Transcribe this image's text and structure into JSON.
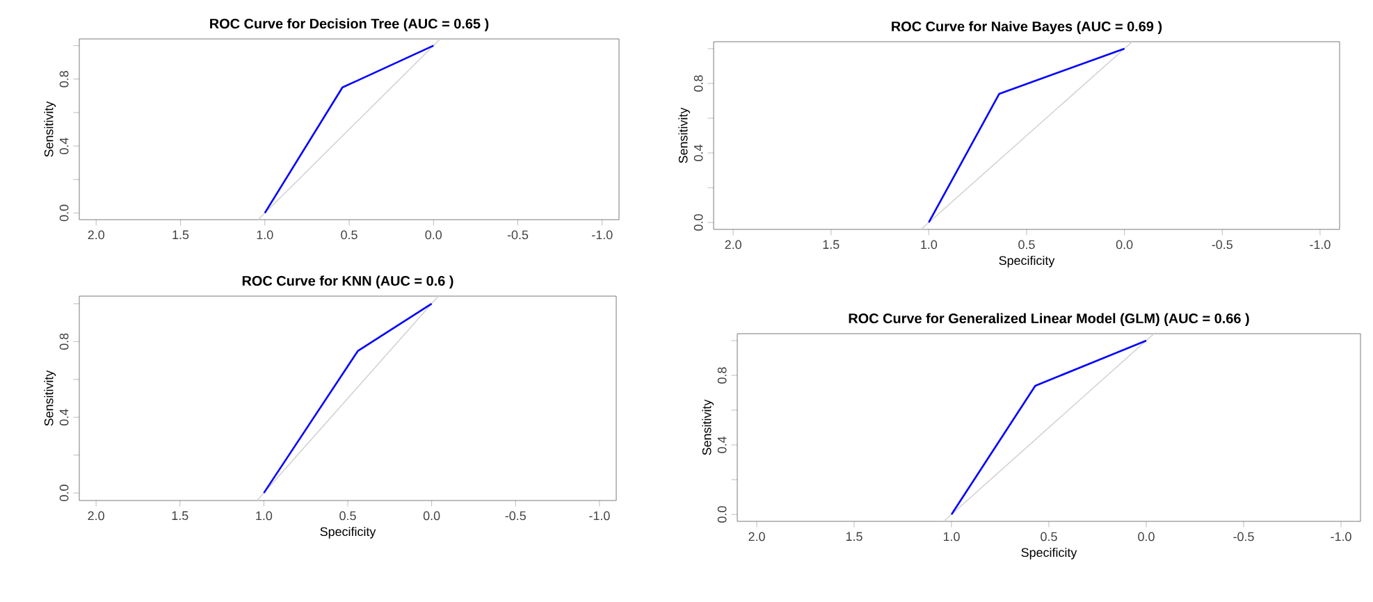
{
  "chart_data": [
    {
      "type": "line",
      "title": "ROC Curve for Decision Tree  (AUC = 0.65 )",
      "ylabel": "Sensitivity",
      "xlim": [
        2.1,
        -1.1
      ],
      "ylim": [
        -0.04,
        1.04
      ],
      "xticks": [
        {
          "value": 2,
          "label": "2.0"
        },
        {
          "value": 1.5,
          "label": "1.5"
        },
        {
          "value": 1,
          "label": "1.0"
        },
        {
          "value": 0.5,
          "label": "0.5"
        },
        {
          "value": 0,
          "label": "0.0"
        },
        {
          "value": -0.5,
          "label": "-0.5"
        },
        {
          "value": -1,
          "label": "-1.0"
        }
      ],
      "yticks": [
        {
          "value": 0,
          "label": "0.0"
        },
        {
          "value": 0.2,
          "label": null
        },
        {
          "value": 0.4,
          "label": "0.4"
        },
        {
          "value": 0.6,
          "label": null
        },
        {
          "value": 0.8,
          "label": "0.8"
        },
        {
          "value": 1,
          "label": null
        }
      ],
      "grid": false,
      "series": [
        {
          "color": "#d3d3d3",
          "x": [
            1.04,
            -0.04
          ],
          "values": [
            -0.04,
            1.04
          ]
        },
        {
          "color": "#0000ff",
          "x": [
            1,
            0.54,
            0
          ],
          "values": [
            0,
            0.75,
            1
          ]
        }
      ]
    },
    {
      "type": "line",
      "title": "ROC Curve for Naive Bayes  (AUC = 0.69 )",
      "xlabel": "Specificity",
      "ylabel": "Sensitivity",
      "xlim": [
        2.1,
        -1.1
      ],
      "ylim": [
        -0.04,
        1.04
      ],
      "xticks": [
        {
          "value": 2,
          "label": "2.0"
        },
        {
          "value": 1.5,
          "label": "1.5"
        },
        {
          "value": 1,
          "label": "1.0"
        },
        {
          "value": 0.5,
          "label": "0.5"
        },
        {
          "value": 0,
          "label": "0.0"
        },
        {
          "value": -0.5,
          "label": "-0.5"
        },
        {
          "value": -1,
          "label": "-1.0"
        }
      ],
      "yticks": [
        {
          "value": 0,
          "label": "0.0"
        },
        {
          "value": 0.2,
          "label": null
        },
        {
          "value": 0.4,
          "label": "0.4"
        },
        {
          "value": 0.6,
          "label": null
        },
        {
          "value": 0.8,
          "label": "0.8"
        },
        {
          "value": 1,
          "label": null
        }
      ],
      "grid": false,
      "series": [
        {
          "color": "#d3d3d3",
          "x": [
            1.04,
            -0.04
          ],
          "values": [
            -0.04,
            1.04
          ]
        },
        {
          "color": "#0000ff",
          "x": [
            1,
            0.64,
            0
          ],
          "values": [
            0,
            0.74,
            1
          ]
        }
      ]
    },
    {
      "type": "line",
      "title": "ROC Curve for KNN  (AUC = 0.6 )",
      "xlabel": "Specificity",
      "ylabel": "Sensitivity",
      "xlim": [
        2.1,
        -1.1
      ],
      "ylim": [
        -0.04,
        1.04
      ],
      "xticks": [
        {
          "value": 2,
          "label": "2.0"
        },
        {
          "value": 1.5,
          "label": "1.5"
        },
        {
          "value": 1,
          "label": "1.0"
        },
        {
          "value": 0.5,
          "label": "0.5"
        },
        {
          "value": 0,
          "label": "0.0"
        },
        {
          "value": -0.5,
          "label": "-0.5"
        },
        {
          "value": -1,
          "label": "-1.0"
        }
      ],
      "yticks": [
        {
          "value": 0,
          "label": "0.0"
        },
        {
          "value": 0.2,
          "label": null
        },
        {
          "value": 0.4,
          "label": "0.4"
        },
        {
          "value": 0.6,
          "label": null
        },
        {
          "value": 0.8,
          "label": "0.8"
        },
        {
          "value": 1,
          "label": null
        }
      ],
      "grid": false,
      "series": [
        {
          "color": "#d3d3d3",
          "x": [
            1.04,
            -0.04
          ],
          "values": [
            -0.04,
            1.04
          ]
        },
        {
          "color": "#0000ff",
          "x": [
            1,
            0.44,
            0
          ],
          "values": [
            0,
            0.75,
            1
          ]
        }
      ]
    },
    {
      "type": "line",
      "title": "ROC Curve for Generalized Linear Model (GLM)  (AUC = 0.66 )",
      "xlabel": "Specificity",
      "ylabel": "Sensitivity",
      "xlim": [
        2.1,
        -1.1
      ],
      "ylim": [
        -0.04,
        1.04
      ],
      "xticks": [
        {
          "value": 2,
          "label": "2.0"
        },
        {
          "value": 1.5,
          "label": "1.5"
        },
        {
          "value": 1,
          "label": "1.0"
        },
        {
          "value": 0.5,
          "label": "0.5"
        },
        {
          "value": 0,
          "label": "0.0"
        },
        {
          "value": -0.5,
          "label": "-0.5"
        },
        {
          "value": -1,
          "label": "-1.0"
        }
      ],
      "yticks": [
        {
          "value": 0,
          "label": "0.0"
        },
        {
          "value": 0.2,
          "label": null
        },
        {
          "value": 0.4,
          "label": "0.4"
        },
        {
          "value": 0.6,
          "label": null
        },
        {
          "value": 0.8,
          "label": "0.8"
        },
        {
          "value": 1,
          "label": null
        }
      ],
      "grid": false,
      "series": [
        {
          "color": "#d3d3d3",
          "x": [
            1.04,
            -0.04
          ],
          "values": [
            -0.04,
            1.04
          ]
        },
        {
          "color": "#0000ff",
          "x": [
            1,
            0.57,
            0
          ],
          "values": [
            0,
            0.74,
            1
          ]
        }
      ]
    }
  ]
}
